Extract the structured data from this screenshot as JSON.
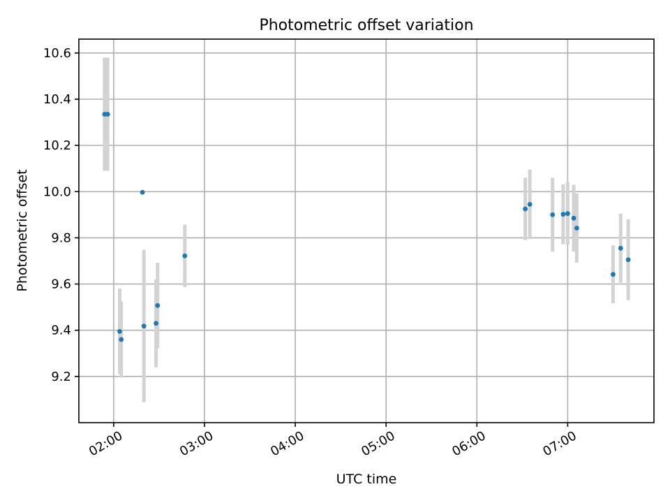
{
  "chart_data": {
    "type": "scatter",
    "title": "Photometric offset variation",
    "xlabel": "UTC time",
    "ylabel": "Photometric offset",
    "x_unit": "hours UTC",
    "xlim": [
      "01:37",
      "07:57"
    ],
    "ylim": [
      9.0,
      10.66
    ],
    "x_ticks": [
      "02:00",
      "03:00",
      "04:00",
      "05:00",
      "06:00",
      "07:00"
    ],
    "y_ticks": [
      "9.2",
      "9.4",
      "9.6",
      "9.8",
      "10.0",
      "10.2",
      "10.4",
      "10.6"
    ],
    "grid": true,
    "colors": {
      "points": "#1f77b4",
      "errorbars": "#d3d3d3"
    },
    "points": [
      {
        "x": "01:54",
        "y": 10.335,
        "err": 0.245
      },
      {
        "x": "01:56",
        "y": 10.335,
        "err": 0.245
      },
      {
        "x": "02:04",
        "y": 9.395,
        "err": 0.185
      },
      {
        "x": "02:05",
        "y": 9.36,
        "err": 0.165
      },
      {
        "x": "02:19",
        "y": 9.997,
        "err": 0.0
      },
      {
        "x": "02:20",
        "y": 9.418,
        "err": 0.33
      },
      {
        "x": "02:28",
        "y": 9.43,
        "err": 0.19
      },
      {
        "x": "02:29",
        "y": 9.507,
        "err": 0.185
      },
      {
        "x": "02:47",
        "y": 9.722,
        "err": 0.135
      },
      {
        "x": "06:32",
        "y": 9.925,
        "err": 0.135
      },
      {
        "x": "06:35",
        "y": 9.945,
        "err": 0.15
      },
      {
        "x": "06:50",
        "y": 9.9,
        "err": 0.16
      },
      {
        "x": "06:57",
        "y": 9.902,
        "err": 0.13
      },
      {
        "x": "07:00",
        "y": 9.905,
        "err": 0.135
      },
      {
        "x": "07:04",
        "y": 9.885,
        "err": 0.145
      },
      {
        "x": "07:06",
        "y": 9.842,
        "err": 0.15
      },
      {
        "x": "07:30",
        "y": 9.642,
        "err": 0.125
      },
      {
        "x": "07:35",
        "y": 9.755,
        "err": 0.15
      },
      {
        "x": "07:40",
        "y": 9.705,
        "err": 0.175
      }
    ]
  }
}
